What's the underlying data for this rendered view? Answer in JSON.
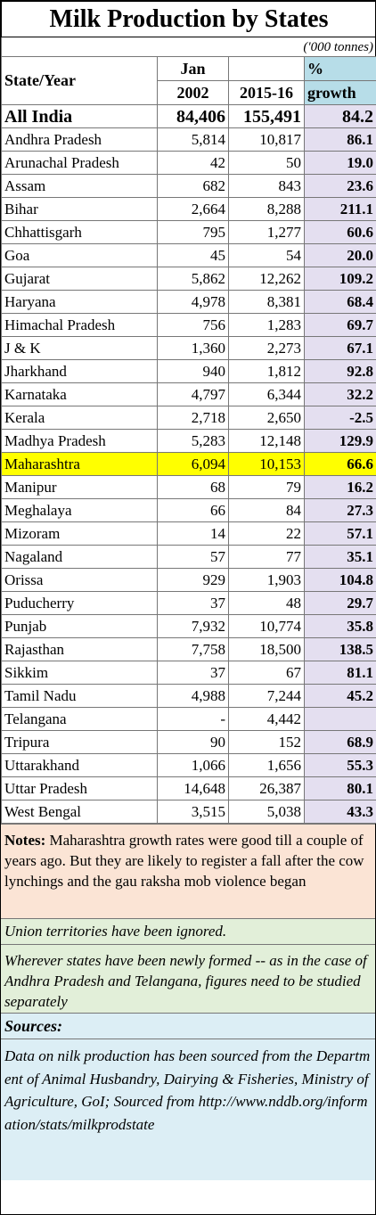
{
  "title": "Milk Production by States",
  "unit": "('000 tonnes)",
  "headers": {
    "state": "State/Year",
    "col1_line1": "Jan",
    "col1_line2": "2002",
    "col2": "2015-16",
    "col3_line1": "%",
    "col3_line2": "growth"
  },
  "all_india": {
    "state": "All India",
    "y2002": "84,406",
    "y2016": "155,491",
    "growth": "84.2"
  },
  "rows": [
    {
      "state": "Andhra Pradesh",
      "y2002": "5,814",
      "y2016": "10,817",
      "growth": "86.1"
    },
    {
      "state": "Arunachal Pradesh",
      "y2002": "42",
      "y2016": "50",
      "growth": "19.0"
    },
    {
      "state": "Assam",
      "y2002": "682",
      "y2016": "843",
      "growth": "23.6"
    },
    {
      "state": "Bihar",
      "y2002": "2,664",
      "y2016": "8,288",
      "growth": "211.1"
    },
    {
      "state": "Chhattisgarh",
      "y2002": "795",
      "y2016": "1,277",
      "growth": "60.6"
    },
    {
      "state": "Goa",
      "y2002": "45",
      "y2016": "54",
      "growth": "20.0"
    },
    {
      "state": "Gujarat",
      "y2002": "5,862",
      "y2016": "12,262",
      "growth": "109.2"
    },
    {
      "state": "Haryana",
      "y2002": "4,978",
      "y2016": "8,381",
      "growth": "68.4"
    },
    {
      "state": "Himachal Pradesh",
      "y2002": "756",
      "y2016": "1,283",
      "growth": "69.7"
    },
    {
      "state": "J & K",
      "y2002": "1,360",
      "y2016": "2,273",
      "growth": "67.1"
    },
    {
      "state": "Jharkhand",
      "y2002": "940",
      "y2016": "1,812",
      "growth": "92.8"
    },
    {
      "state": "Karnataka",
      "y2002": "4,797",
      "y2016": "6,344",
      "growth": "32.2"
    },
    {
      "state": "Kerala",
      "y2002": "2,718",
      "y2016": "2,650",
      "growth": "-2.5"
    },
    {
      "state": "Madhya Pradesh",
      "y2002": "5,283",
      "y2016": "12,148",
      "growth": "129.9"
    },
    {
      "state": "Maharashtra",
      "y2002": "6,094",
      "y2016": "10,153",
      "growth": "66.6",
      "highlight": true
    },
    {
      "state": "Manipur",
      "y2002": "68",
      "y2016": "79",
      "growth": "16.2"
    },
    {
      "state": "Meghalaya",
      "y2002": "66",
      "y2016": "84",
      "growth": "27.3"
    },
    {
      "state": "Mizoram",
      "y2002": "14",
      "y2016": "22",
      "growth": "57.1"
    },
    {
      "state": "Nagaland",
      "y2002": "57",
      "y2016": "77",
      "growth": "35.1"
    },
    {
      "state": "Orissa",
      "y2002": "929",
      "y2016": "1,903",
      "growth": "104.8"
    },
    {
      "state": "Puducherry",
      "y2002": "37",
      "y2016": "48",
      "growth": "29.7"
    },
    {
      "state": "Punjab",
      "y2002": "7,932",
      "y2016": "10,774",
      "growth": "35.8"
    },
    {
      "state": "Rajasthan",
      "y2002": "7,758",
      "y2016": "18,500",
      "growth": "138.5"
    },
    {
      "state": "Sikkim",
      "y2002": "37",
      "y2016": "67",
      "growth": "81.1"
    },
    {
      "state": "Tamil Nadu",
      "y2002": "4,988",
      "y2016": "7,244",
      "growth": "45.2"
    },
    {
      "state": "Telangana",
      "y2002": "-",
      "y2016": "4,442",
      "growth": ""
    },
    {
      "state": "Tripura",
      "y2002": "90",
      "y2016": "152",
      "growth": "68.9"
    },
    {
      "state": "Uttarakhand",
      "y2002": "1,066",
      "y2016": "1,656",
      "growth": "55.3"
    },
    {
      "state": "Uttar Pradesh",
      "y2002": "14,648",
      "y2016": "26,387",
      "growth": "80.1"
    },
    {
      "state": "West Bengal",
      "y2002": "3,515",
      "y2016": "5,038",
      "growth": "43.3"
    }
  ],
  "notes": {
    "label": "Notes:",
    "text": " Maharashtra growth rates were good till a couple of years ago.  But they are likely to register a fall after the cow lynchings and the gau raksha mob violence began"
  },
  "union_territories_note": "Union territories have been ignored.",
  "new_states_note": "Wherever states have been newly formed -- as in the case of Andhra Pradesh and Telangana, figures need to be studied separately",
  "sources": {
    "heading": "Sources:",
    "text": "Data on nilk production has been sourced from the Department of Animal Husbandry, Dairying & Fisheries, Ministry of Agriculture, GoI; Sourced from http://www.nddb.org/information/stats/milkprodstate"
  },
  "colors": {
    "growth_column": "#e4dff0",
    "growth_header": "#b7dde8",
    "highlight_row": "#ffff00",
    "notes_bg": "#fbe4d5",
    "green_notes_bg": "#e2efd9",
    "sources_bg": "#dceef5"
  }
}
